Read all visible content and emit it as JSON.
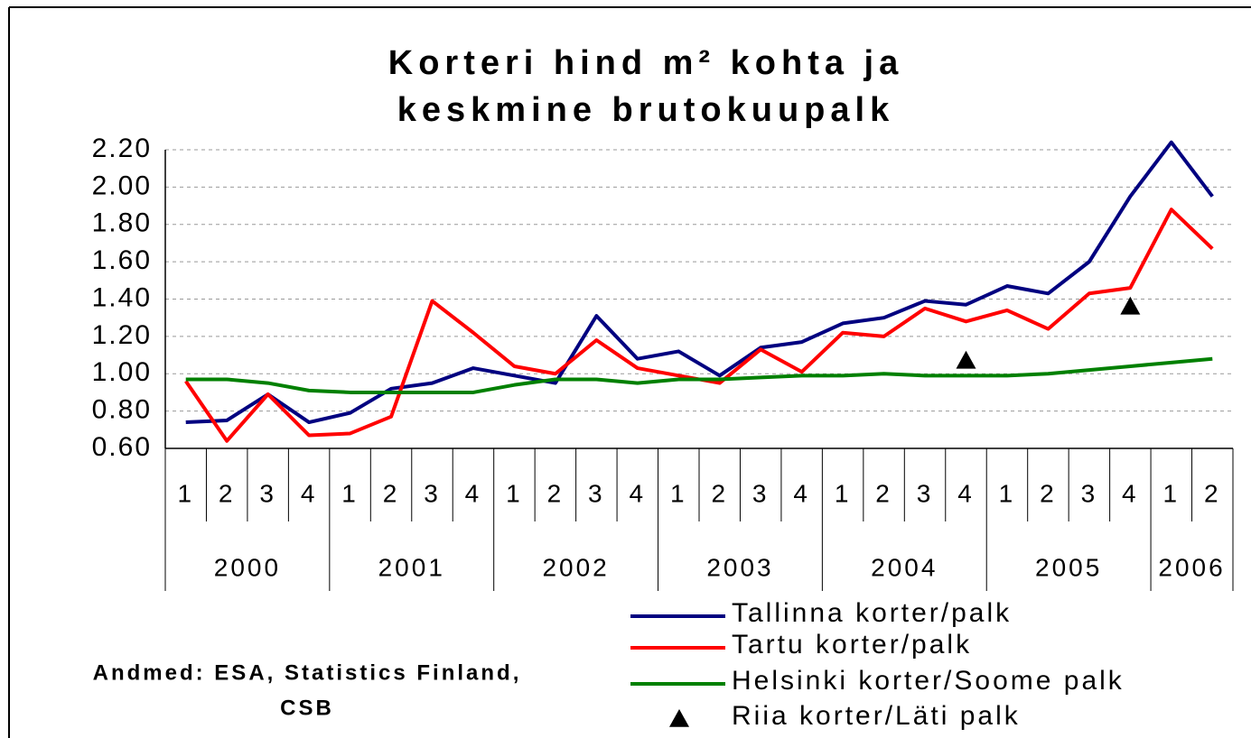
{
  "chart_data": {
    "type": "line",
    "title": [
      "Korteri hind m² kohta ja",
      "keskmine brutokuupalk"
    ],
    "categories": [
      "1",
      "2",
      "3",
      "4",
      "1",
      "2",
      "3",
      "4",
      "1",
      "2",
      "3",
      "4",
      "1",
      "2",
      "3",
      "4",
      "1",
      "2",
      "3",
      "4",
      "1",
      "2",
      "3",
      "4",
      "1",
      "2"
    ],
    "years": [
      "2000",
      "2001",
      "2002",
      "2003",
      "2004",
      "2005",
      "2006"
    ],
    "series": [
      {
        "name": "Tallinna korter/palk",
        "color": "#000080",
        "values": [
          0.74,
          0.75,
          0.89,
          0.74,
          0.79,
          0.92,
          0.95,
          1.03,
          0.99,
          0.95,
          1.31,
          1.08,
          1.12,
          0.99,
          1.14,
          1.17,
          1.27,
          1.3,
          1.39,
          1.37,
          1.47,
          1.43,
          1.6,
          1.95,
          2.24,
          1.95
        ]
      },
      {
        "name": "Tartu korter/palk",
        "color": "#ff0000",
        "values": [
          0.96,
          0.64,
          0.89,
          0.67,
          0.68,
          0.77,
          1.39,
          1.22,
          1.04,
          1.0,
          1.18,
          1.03,
          0.99,
          0.95,
          1.13,
          1.01,
          1.22,
          1.2,
          1.35,
          1.28,
          1.34,
          1.24,
          1.43,
          1.46,
          1.88,
          1.67
        ]
      },
      {
        "name": "Helsinki korter/Soome palk",
        "color": "#008000",
        "values": [
          0.97,
          0.97,
          0.95,
          0.91,
          0.9,
          0.9,
          0.9,
          0.9,
          0.94,
          0.97,
          0.97,
          0.95,
          0.97,
          0.97,
          0.98,
          0.99,
          0.99,
          1.0,
          0.99,
          0.99,
          0.99,
          1.0,
          1.02,
          1.04,
          1.06,
          1.08
        ]
      },
      {
        "name": "Riia korter/Läti palk",
        "color": "#000000",
        "marker": "triangle",
        "values": [
          null,
          null,
          null,
          null,
          null,
          null,
          null,
          null,
          null,
          null,
          null,
          null,
          null,
          null,
          null,
          null,
          null,
          null,
          null,
          1.07,
          null,
          null,
          null,
          1.36,
          null,
          null
        ]
      }
    ],
    "ylim": [
      0.6,
      2.2
    ],
    "yticks": [
      {
        "value": 0.6,
        "label": "0.60"
      },
      {
        "value": 0.8,
        "label": "0.80"
      },
      {
        "value": 1.0,
        "label": "1.00"
      },
      {
        "value": 1.2,
        "label": "1.20"
      },
      {
        "value": 1.4,
        "label": "1.40"
      },
      {
        "value": 1.6,
        "label": "1.60"
      },
      {
        "value": 1.8,
        "label": "1.80"
      },
      {
        "value": 2.0,
        "label": "2.00"
      },
      {
        "value": 2.2,
        "label": "2.20"
      }
    ],
    "grid": true,
    "source": [
      "Andmed: ESA, Statistics Finland,",
      "CSB"
    ]
  }
}
